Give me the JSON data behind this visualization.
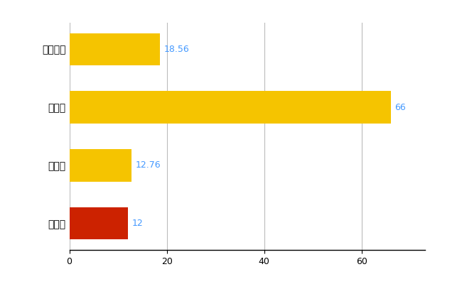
{
  "categories": [
    "羽島市",
    "県平均",
    "県最大",
    "全国平均"
  ],
  "values": [
    12,
    12.76,
    66,
    18.56
  ],
  "bar_colors": [
    "#CC2200",
    "#F5C400",
    "#F5C400",
    "#F5C400"
  ],
  "value_labels": [
    "12",
    "12.76",
    "66",
    "18.56"
  ],
  "label_color": "#4499FF",
  "xlim": [
    0,
    73
  ],
  "xticks": [
    0,
    20,
    40,
    60
  ],
  "background_color": "#FFFFFF",
  "grid_color": "#BBBBBB",
  "bar_height": 0.55,
  "figsize": [
    6.5,
    4.0
  ],
  "dpi": 100
}
